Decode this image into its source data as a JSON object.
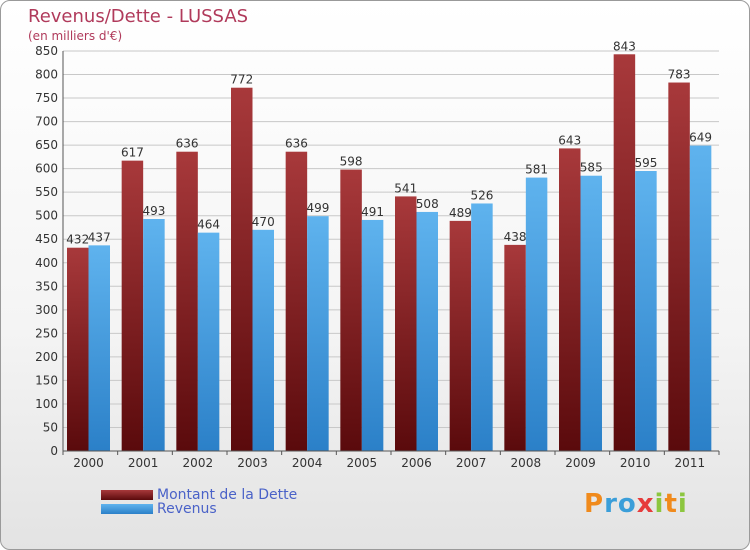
{
  "header": {
    "title": "Revenus/Dette - LUSSAS",
    "subtitle": "(en milliers d'€)"
  },
  "legend": [
    {
      "label": "Montant de la Dette",
      "color": "#7a1518"
    },
    {
      "label": "Revenus",
      "color": "#4aa3e4"
    }
  ],
  "logo": {
    "text": "Proxiti",
    "letters": [
      "P",
      "r",
      "o",
      "x",
      "i",
      "t",
      "i"
    ],
    "letter_colors": [
      "#f08a1c",
      "#3a9ed9",
      "#3a9ed9",
      "#e63c3c",
      "#8cc63f",
      "#f08a1c",
      "#8cc63f"
    ]
  },
  "colors": {
    "debt_top": "#a8393b",
    "debt_bottom": "#5a0a0c",
    "revenue_top": "#5fb3ee",
    "revenue_bottom": "#2b80c8",
    "grid": "#c8c8c8",
    "axis_text": "#333333"
  },
  "chart_data": {
    "type": "bar",
    "categories": [
      "2000",
      "2001",
      "2002",
      "2003",
      "2004",
      "2005",
      "2006",
      "2007",
      "2008",
      "2009",
      "2010",
      "2011"
    ],
    "series": [
      {
        "name": "Montant de la Dette",
        "values": [
          432,
          617,
          636,
          772,
          636,
          598,
          541,
          489,
          438,
          643,
          843,
          783
        ]
      },
      {
        "name": "Revenus",
        "values": [
          437,
          493,
          464,
          470,
          499,
          491,
          508,
          526,
          581,
          585,
          595,
          649
        ]
      }
    ],
    "ylim": [
      0,
      850
    ],
    "yticks": [
      0,
      50,
      100,
      150,
      200,
      250,
      300,
      350,
      400,
      450,
      500,
      550,
      600,
      650,
      700,
      750,
      800,
      850
    ],
    "grid": true,
    "legend_position": "bottom-left",
    "title": "Revenus/Dette - LUSSAS",
    "ylabel": "(en milliers d'€)",
    "xlabel": ""
  }
}
